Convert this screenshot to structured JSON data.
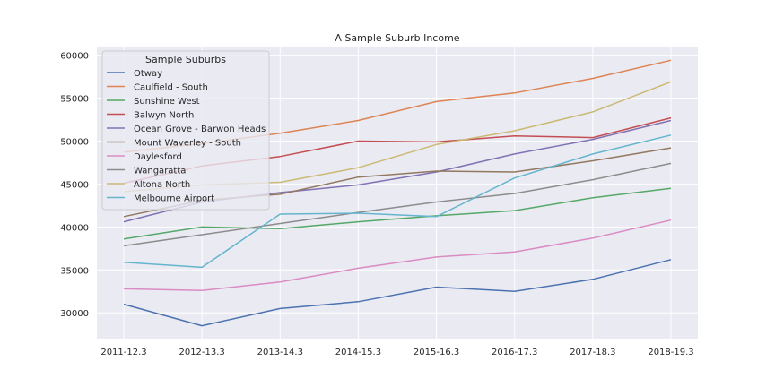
{
  "chart_data": {
    "type": "line",
    "title": "A Sample Suburb Income",
    "xlabel": "",
    "ylabel": "",
    "categories": [
      "2011-12.3",
      "2012-13.3",
      "2013-14.3",
      "2014-15.3",
      "2015-16.3",
      "2016-17.3",
      "2017-18.3",
      "2018-19.3"
    ],
    "ylim": [
      27000,
      61000
    ],
    "yticks": [
      30000,
      35000,
      40000,
      45000,
      50000,
      55000,
      60000
    ],
    "grid": true,
    "legend": {
      "title": "Sample Suburbs",
      "placement": "upper-left"
    },
    "series": [
      {
        "name": "Otway",
        "color": "#4c72b0",
        "values": [
          31000,
          28500,
          30500,
          31300,
          33000,
          32500,
          33900,
          36200
        ]
      },
      {
        "name": "Caulfield - South",
        "color": "#dd8452",
        "values": [
          48700,
          49700,
          50900,
          52400,
          54600,
          55600,
          57300,
          59400
        ]
      },
      {
        "name": "Sunshine West",
        "color": "#55a868",
        "values": [
          38600,
          40000,
          39800,
          40600,
          41300,
          41900,
          43400,
          44500
        ]
      },
      {
        "name": "Balwyn North",
        "color": "#c44e52",
        "values": [
          45100,
          47100,
          48200,
          50000,
          49900,
          50600,
          50400,
          52700
        ]
      },
      {
        "name": "Ocean Grove - Barwon Heads",
        "color": "#8172b3",
        "values": [
          40600,
          42900,
          44000,
          44900,
          46400,
          48500,
          50200,
          52400
        ]
      },
      {
        "name": "Mount Waverley - South",
        "color": "#937860",
        "values": [
          41200,
          43100,
          43800,
          45800,
          46500,
          46400,
          47700,
          49200
        ]
      },
      {
        "name": "Daylesford",
        "color": "#da8bc3",
        "values": [
          32800,
          32600,
          33600,
          35200,
          36500,
          37100,
          38700,
          40800
        ]
      },
      {
        "name": "Wangaratta",
        "color": "#8c8c8c",
        "values": [
          37800,
          39100,
          40400,
          41700,
          42900,
          43900,
          45500,
          47400
        ]
      },
      {
        "name": "Altona North",
        "color": "#ccb974",
        "values": [
          44100,
          44900,
          45200,
          46900,
          49600,
          51200,
          53400,
          56900
        ]
      },
      {
        "name": "Melbourne Airport",
        "color": "#64b5cd",
        "values": [
          35900,
          35300,
          41500,
          41600,
          41200,
          45700,
          48500,
          50700
        ]
      }
    ]
  }
}
